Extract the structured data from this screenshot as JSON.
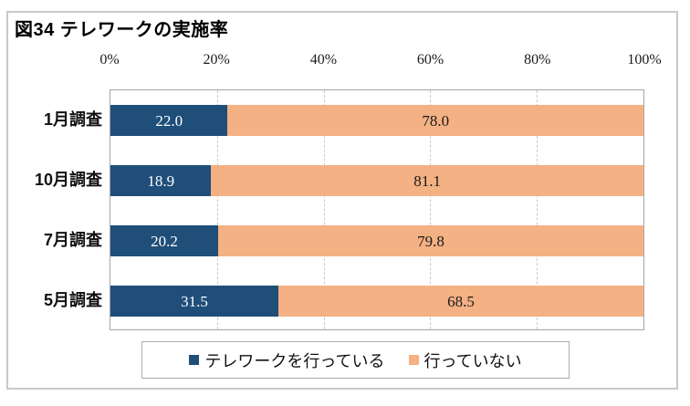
{
  "title": "図34 テレワークの実施率",
  "colors": {
    "series_telework": "#1F4E79",
    "series_no_telework": "#F4B183",
    "gridline": "#c9c9c9",
    "plot_border": "#a6a6a6",
    "frame_border": "#c9c9c9"
  },
  "chart_data": {
    "type": "bar",
    "orientation": "horizontal",
    "stacked": true,
    "title": "図34 テレワークの実施率",
    "categories": [
      "1月調査",
      "10月調査",
      "7月調査",
      "5月調査"
    ],
    "series": [
      {
        "name": "テレワークを行っている",
        "color": "#1F4E79",
        "label_color": "#ffffff",
        "values": [
          22.0,
          18.9,
          20.2,
          31.5
        ],
        "labels": [
          "22.0",
          "18.9",
          "20.2",
          "31.5"
        ]
      },
      {
        "name": "行っていない",
        "color": "#F4B183",
        "label_color": "#1a1a1a",
        "values": [
          78.0,
          81.1,
          79.8,
          68.5
        ],
        "labels": [
          "78.0",
          "81.1",
          "79.8",
          "68.5"
        ]
      }
    ],
    "x_ticks": [
      {
        "label": "0%",
        "value": 0
      },
      {
        "label": "20%",
        "value": 20
      },
      {
        "label": "40%",
        "value": 40
      },
      {
        "label": "60%",
        "value": 60
      },
      {
        "label": "80%",
        "value": 80
      },
      {
        "label": "100%",
        "value": 100
      }
    ],
    "xlim": [
      0,
      100
    ],
    "grid": true,
    "legend_position": "bottom"
  },
  "legend": {
    "items": [
      {
        "label": "テレワークを行っている",
        "color": "#1F4E79"
      },
      {
        "label": "行っていない",
        "color": "#F4B183"
      }
    ]
  }
}
